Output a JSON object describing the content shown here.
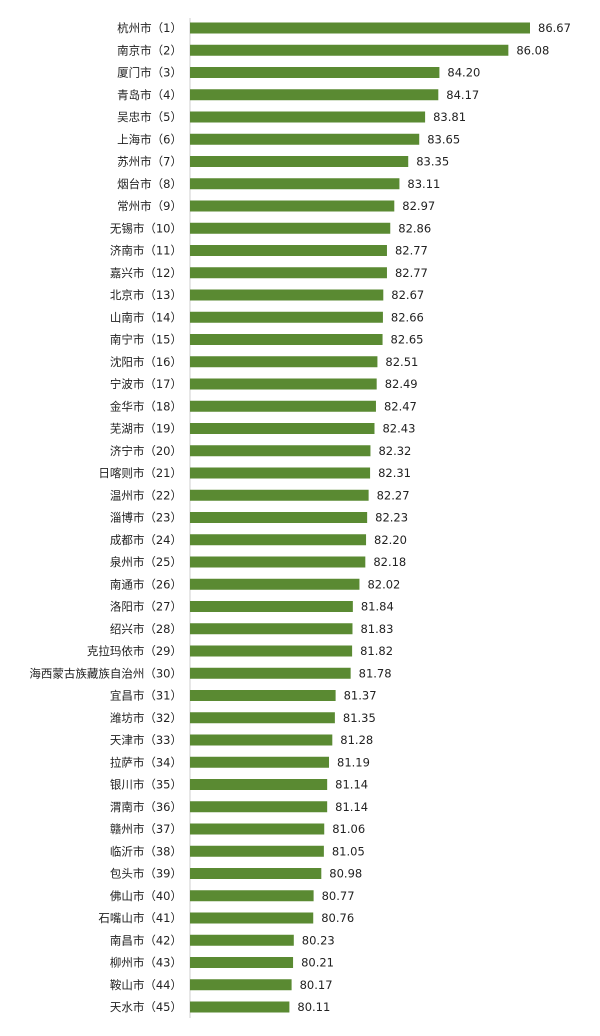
{
  "colors": {
    "bar": "#5a8a32",
    "axis": "#cfcfcf",
    "text": "#222222"
  },
  "chart_data": {
    "type": "bar",
    "orientation": "horizontal",
    "title": "",
    "xlabel": "",
    "ylabel": "",
    "grid": false,
    "legend": "none",
    "xlim": [
      77.4,
      86.67
    ],
    "categories": [
      "杭州市（1）",
      "南京市（2）",
      "厦门市（3）",
      "青岛市（4）",
      "吴忠市（5）",
      "上海市（6）",
      "苏州市（7）",
      "烟台市（8）",
      "常州市（9）",
      "无锡市（10）",
      "济南市（11）",
      "嘉兴市（12）",
      "北京市（13）",
      "山南市（14）",
      "南宁市（15）",
      "沈阳市（16）",
      "宁波市（17）",
      "金华市（18）",
      "芜湖市（19）",
      "济宁市（20）",
      "日喀则市（21）",
      "温州市（22）",
      "淄博市（23）",
      "成都市（24）",
      "泉州市（25）",
      "南通市（26）",
      "洛阳市（27）",
      "绍兴市（28）",
      "克拉玛依市（29）",
      "海西蒙古族藏族自治州（30）",
      "宜昌市（31）",
      "潍坊市（32）",
      "天津市（33）",
      "拉萨市（34）",
      "银川市（35）",
      "渭南市（36）",
      "赣州市（37）",
      "临沂市（38）",
      "包头市（39）",
      "佛山市（40）",
      "石嘴山市（41）",
      "南昌市（42）",
      "柳州市（43）",
      "鞍山市（44）",
      "天水市（45）"
    ],
    "values": [
      86.67,
      86.08,
      84.2,
      84.17,
      83.81,
      83.65,
      83.35,
      83.11,
      82.97,
      82.86,
      82.77,
      82.77,
      82.67,
      82.66,
      82.65,
      82.51,
      82.49,
      82.47,
      82.43,
      82.32,
      82.31,
      82.27,
      82.23,
      82.2,
      82.18,
      82.02,
      81.84,
      81.83,
      81.82,
      81.78,
      81.37,
      81.35,
      81.28,
      81.19,
      81.14,
      81.14,
      81.06,
      81.05,
      80.98,
      80.77,
      80.76,
      80.23,
      80.21,
      80.17,
      80.11
    ],
    "value_labels": [
      "86.67",
      "86.08",
      "84.20",
      "84.17",
      "83.81",
      "83.65",
      "83.35",
      "83.11",
      "82.97",
      "82.86",
      "82.77",
      "82.77",
      "82.67",
      "82.66",
      "82.65",
      "82.51",
      "82.49",
      "82.47",
      "82.43",
      "82.32",
      "82.31",
      "82.27",
      "82.23",
      "82.20",
      "82.18",
      "82.02",
      "81.84",
      "81.83",
      "81.82",
      "81.78",
      "81.37",
      "81.35",
      "81.28",
      "81.19",
      "81.14",
      "81.14",
      "81.06",
      "81.05",
      "80.98",
      "80.77",
      "80.76",
      "80.23",
      "80.21",
      "80.17",
      "80.11"
    ]
  }
}
